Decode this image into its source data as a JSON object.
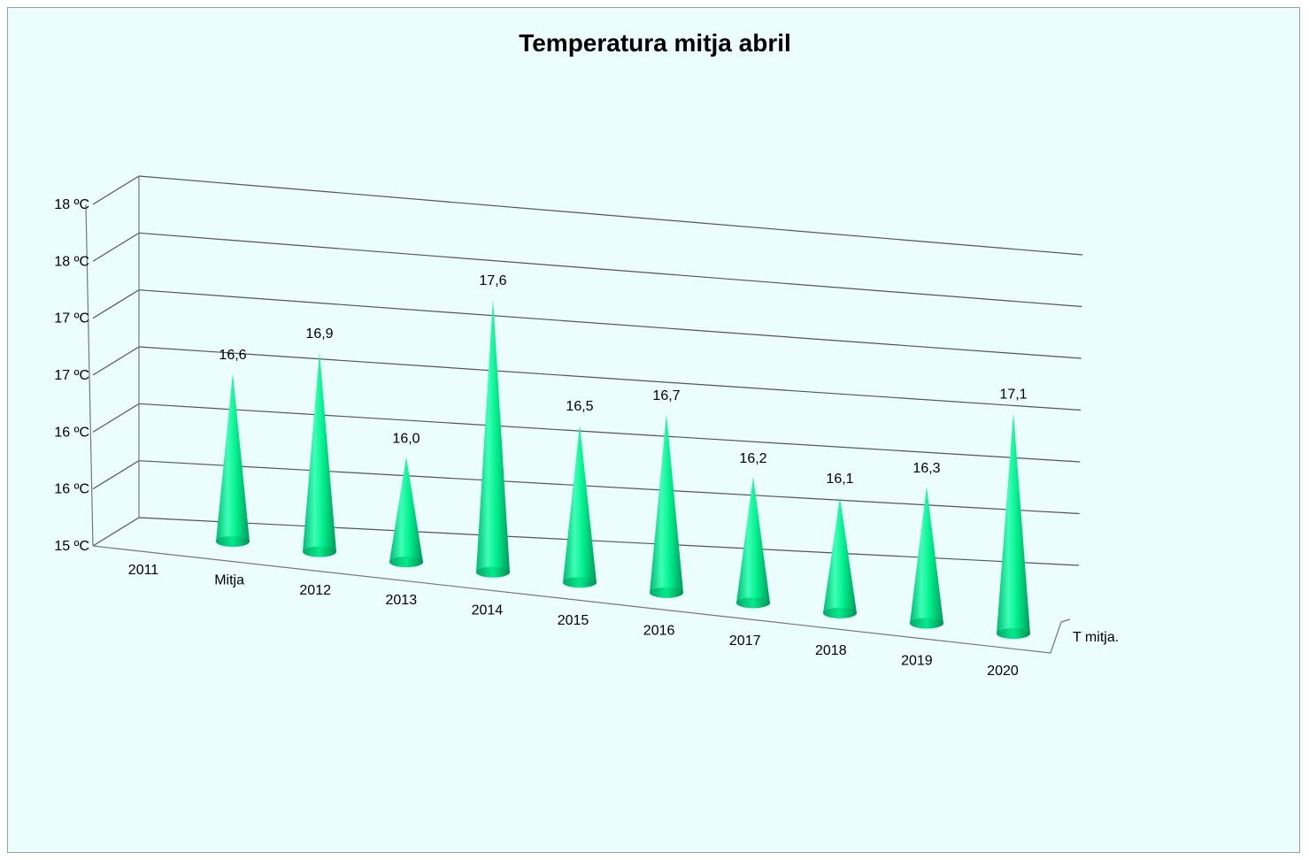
{
  "chart_data": {
    "type": "bar",
    "shape": "cone-3d",
    "title": "Temperatura mitja abril",
    "xlabel": "",
    "ylabel": "",
    "depth_axis_label": "T mitja.",
    "categories": [
      "2011",
      "Mitja",
      "2012",
      "2013",
      "2014",
      "2015",
      "2016",
      "2017",
      "2018",
      "2019",
      "2020"
    ],
    "series": [
      {
        "name": "T mitja.",
        "values": [
          null,
          16.6,
          16.9,
          16.0,
          17.6,
          16.5,
          16.7,
          16.2,
          16.1,
          16.3,
          17.1
        ],
        "data_labels": [
          "",
          "16,6",
          "16,9",
          "16,0",
          "17,6",
          "16,5",
          "16,7",
          "16,2",
          "16,1",
          "16,3",
          "17,1"
        ],
        "color": "#00e58a"
      }
    ],
    "ylim": [
      15.0,
      18.0
    ],
    "yticks": [
      15.0,
      15.5,
      16.0,
      16.5,
      17.0,
      17.5,
      18.0
    ],
    "ytick_labels": [
      "15 ºC",
      "16 ºC",
      "16 ºC",
      "17 ºC",
      "17 ºC",
      "18 ºC",
      "18 ºC"
    ],
    "grid": true,
    "legend": "none",
    "colors": {
      "background": "#ecfdfd",
      "cone_light": "#7dffd0",
      "cone_mid": "#00f08e",
      "cone_dark": "#00a060",
      "grid": "#555555"
    }
  }
}
